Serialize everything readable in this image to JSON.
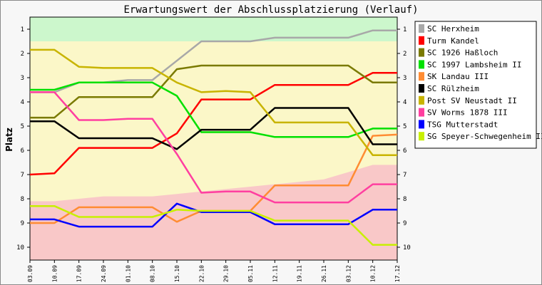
{
  "chart_data": {
    "type": "line",
    "title": "Erwartungswert der Abschlussplatzierung (Verlauf)",
    "ylabel": "Platz",
    "xlabel": "",
    "ylim": [
      1,
      10
    ],
    "y_inverted": true,
    "grid": false,
    "legend_position": "right",
    "yticks": [
      1,
      2,
      3,
      4,
      5,
      6,
      7,
      8,
      9,
      10
    ],
    "x": [
      "03.09",
      "10.09",
      "17.09",
      "24.09",
      "01.10",
      "08.10",
      "15.10",
      "22.10",
      "29.10",
      "05.11",
      "12.11",
      "19.11",
      "26.11",
      "03.12",
      "10.12",
      "17.12"
    ],
    "zones": [
      {
        "name": "aufstieg",
        "from": 0.5,
        "to": 1.5,
        "color": "#ccf7cc"
      },
      {
        "name": "mittelfeld",
        "from": 1.5,
        "to": 10.5,
        "color": "#fbf7c8"
      }
    ],
    "relegation_boundary": [
      8.1,
      8.1,
      8.0,
      7.9,
      7.9,
      7.9,
      7.8,
      7.7,
      7.6,
      7.5,
      7.4,
      7.3,
      7.2,
      6.9,
      6.6,
      6.6
    ],
    "relegation_color": "#f9c8c8",
    "series": [
      {
        "name": "SC Herxheim",
        "color": "#a8a8a8",
        "values": [
          3.6,
          3.6,
          3.2,
          3.2,
          3.1,
          3.1,
          2.3,
          1.5,
          1.5,
          1.5,
          1.35,
          1.35,
          1.35,
          1.35,
          1.05,
          1.05
        ]
      },
      {
        "name": "Turm Kandel",
        "color": "#ff0000",
        "values": [
          7.0,
          6.95,
          5.9,
          5.9,
          5.9,
          5.9,
          5.3,
          3.9,
          3.9,
          3.9,
          3.3,
          3.3,
          3.3,
          3.3,
          2.8,
          2.8
        ]
      },
      {
        "name": "SC 1926 Haßloch",
        "color": "#7a7a00",
        "values": [
          4.65,
          4.65,
          3.8,
          3.8,
          3.8,
          3.8,
          2.65,
          2.5,
          2.5,
          2.5,
          2.5,
          2.5,
          2.5,
          2.5,
          3.2,
          3.2
        ]
      },
      {
        "name": "SC 1997 Lambsheim II",
        "color": "#00e000",
        "values": [
          3.5,
          3.5,
          3.2,
          3.2,
          3.2,
          3.2,
          3.75,
          5.25,
          5.25,
          5.25,
          5.45,
          5.45,
          5.45,
          5.45,
          5.1,
          5.1
        ]
      },
      {
        "name": "SK Landau III",
        "color": "#ff8c33",
        "values": [
          9.0,
          9.0,
          8.35,
          8.35,
          8.35,
          8.35,
          8.95,
          8.5,
          8.5,
          8.5,
          7.45,
          7.45,
          7.45,
          7.45,
          5.4,
          5.35
        ]
      },
      {
        "name": "SC Rülzheim",
        "color": "#000000",
        "values": [
          4.8,
          4.8,
          5.5,
          5.5,
          5.5,
          5.5,
          5.95,
          5.15,
          5.15,
          5.15,
          4.25,
          4.25,
          4.25,
          4.25,
          5.75,
          5.75
        ]
      },
      {
        "name": "Post SV Neustadt II",
        "color": "#c8b400",
        "values": [
          1.85,
          1.85,
          2.55,
          2.6,
          2.6,
          2.6,
          3.2,
          3.6,
          3.55,
          3.6,
          4.85,
          4.85,
          4.85,
          4.85,
          6.2,
          6.2
        ]
      },
      {
        "name": "SV Worms 1878 III",
        "color": "#ff3fa0",
        "values": [
          3.6,
          3.6,
          4.75,
          4.75,
          4.7,
          4.7,
          6.15,
          7.75,
          7.7,
          7.7,
          8.15,
          8.15,
          8.15,
          8.15,
          7.4,
          7.4
        ]
      },
      {
        "name": "TSG Mutterstadt",
        "color": "#0000ff",
        "values": [
          8.85,
          8.85,
          9.15,
          9.15,
          9.15,
          9.15,
          8.2,
          8.55,
          8.55,
          8.55,
          9.05,
          9.05,
          9.05,
          9.05,
          8.45,
          8.45
        ]
      },
      {
        "name": "SG Speyer-Schwegenheim II",
        "color": "#c8f000",
        "values": [
          8.3,
          8.3,
          8.75,
          8.75,
          8.75,
          8.75,
          8.45,
          8.5,
          8.5,
          8.5,
          8.9,
          8.9,
          8.9,
          8.9,
          9.9,
          9.9
        ]
      }
    ]
  }
}
